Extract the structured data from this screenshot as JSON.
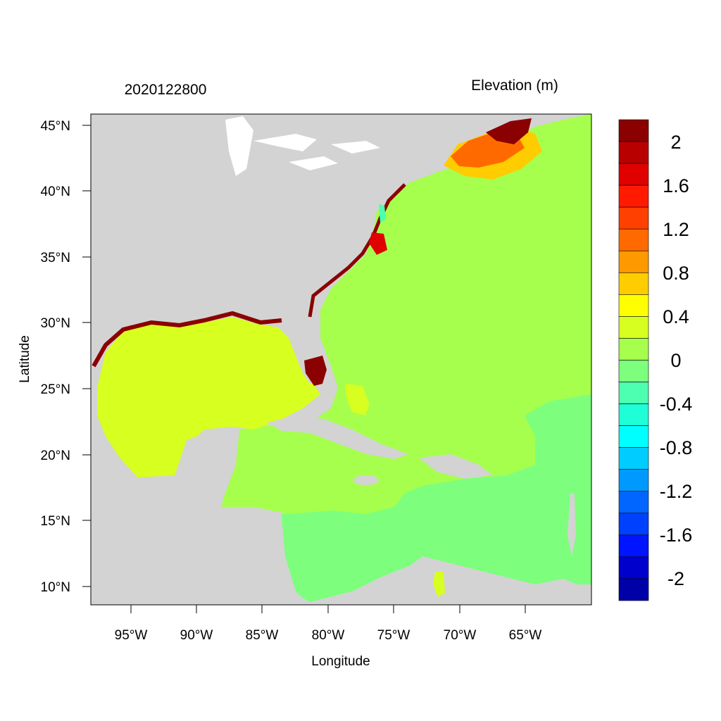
{
  "header": {
    "date_label": "2020122800",
    "variable_label": "Elevation (m)"
  },
  "axes": {
    "xlabel": "Longitude",
    "ylabel": "Latitude",
    "x_ticks": [
      "95°W",
      "90°W",
      "85°W",
      "80°W",
      "75°W",
      "70°W",
      "65°W"
    ],
    "y_ticks": [
      "45°N",
      "40°N",
      "35°N",
      "30°N",
      "25°N",
      "20°N",
      "15°N",
      "10°N"
    ]
  },
  "colorbar": {
    "labels": [
      "2",
      "1.6",
      "1.2",
      "0.8",
      "0.4",
      "0",
      "-0.4",
      "-0.8",
      "-1.2",
      "-1.6",
      "-2"
    ],
    "colors": [
      "#8b0000",
      "#b90000",
      "#e00000",
      "#ff1a00",
      "#ff4000",
      "#ff6a00",
      "#ff9900",
      "#ffcc00",
      "#ffff00",
      "#d7ff1f",
      "#a6ff4d",
      "#7dff7d",
      "#4dffb0",
      "#1fffd7",
      "#00ffff",
      "#00ccff",
      "#0099ff",
      "#0066ff",
      "#0040ff",
      "#0014ff",
      "#0000cc",
      "#0000a8"
    ]
  },
  "map_colors": {
    "land": "#d3d3d3",
    "lakes": "#ffffff",
    "gulf": "#d7ff1f",
    "atlantic": "#a6ff4d",
    "caribbean_south": "#7dff7d",
    "coast_surge": "#8b0000"
  }
}
